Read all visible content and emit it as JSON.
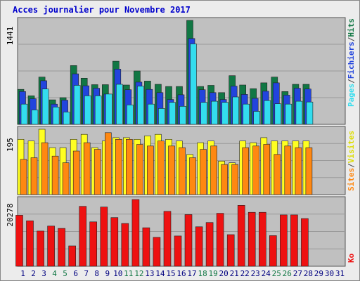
{
  "title": "Acces journalier pour Novembre 2017",
  "colors": {
    "title": "#0000cc",
    "panel_bg": "#c0c0c0",
    "grid": "#9a9a9a",
    "pages": "#33ddee",
    "fichiers": "#2244dd",
    "hits": "#117744",
    "sites": "#ffff22",
    "visites": "#ff8811",
    "ko": "#ee1111",
    "weekend_tick": "#117744",
    "weekday_tick": "#000080"
  },
  "chart_data": [
    {
      "type": "bar",
      "name": "pages-fichiers-hits",
      "y_max_label": "1441",
      "ylim": [
        0,
        1441
      ],
      "legend": [
        "Pages",
        "Fichiers",
        "Hits"
      ],
      "x": [
        "1",
        "2",
        "3",
        "4",
        "5",
        "6",
        "7",
        "8",
        "9",
        "10",
        "11",
        "12",
        "13",
        "14",
        "15",
        "16",
        "17",
        "18",
        "19",
        "20",
        "21",
        "22",
        "23",
        "24",
        "25",
        "26",
        "27",
        "28",
        "29",
        "30",
        "31"
      ],
      "series": [
        {
          "name": "Hits",
          "values": [
            485,
            395,
            655,
            340,
            370,
            815,
            640,
            550,
            550,
            875,
            545,
            740,
            600,
            555,
            525,
            525,
            1441,
            525,
            540,
            440,
            675,
            545,
            495,
            575,
            655,
            455,
            555,
            555,
            0,
            0,
            0
          ]
        },
        {
          "name": "Fichiers",
          "values": [
            455,
            355,
            605,
            280,
            335,
            700,
            535,
            500,
            420,
            765,
            480,
            585,
            485,
            440,
            345,
            410,
            1190,
            480,
            440,
            345,
            530,
            415,
            360,
            460,
            575,
            405,
            500,
            490,
            0,
            0,
            0
          ]
        },
        {
          "name": "Pages",
          "values": [
            280,
            200,
            490,
            240,
            170,
            540,
            395,
            395,
            420,
            555,
            270,
            530,
            280,
            220,
            305,
            250,
            1115,
            305,
            320,
            305,
            380,
            280,
            180,
            330,
            285,
            280,
            320,
            310,
            0,
            0,
            0
          ]
        }
      ]
    },
    {
      "type": "bar",
      "name": "sites-visites",
      "y_max_label": "195",
      "ylim": [
        0,
        195
      ],
      "legend": [
        "Sites",
        "Visites"
      ],
      "x": [
        "1",
        "2",
        "3",
        "4",
        "5",
        "6",
        "7",
        "8",
        "9",
        "10",
        "11",
        "12",
        "13",
        "14",
        "15",
        "16",
        "17",
        "18",
        "19",
        "20",
        "21",
        "22",
        "23",
        "24",
        "25",
        "26",
        "27",
        "28",
        "29",
        "30",
        "31"
      ],
      "series": [
        {
          "name": "Sites",
          "values": [
            165,
            160,
            195,
            140,
            140,
            165,
            180,
            140,
            160,
            170,
            170,
            165,
            175,
            180,
            165,
            160,
            120,
            155,
            160,
            100,
            95,
            160,
            155,
            170,
            160,
            160,
            160,
            160,
            0,
            0,
            0
          ]
        },
        {
          "name": "Visites",
          "values": [
            105,
            110,
            155,
            115,
            95,
            130,
            155,
            135,
            185,
            165,
            165,
            150,
            145,
            160,
            145,
            140,
            110,
            135,
            145,
            90,
            90,
            140,
            145,
            150,
            120,
            145,
            140,
            140,
            0,
            0,
            0
          ]
        }
      ]
    },
    {
      "type": "bar",
      "name": "ko",
      "y_max_label": "20278",
      "ylim": [
        0,
        20278
      ],
      "legend": [
        "Ko"
      ],
      "x": [
        "1",
        "2",
        "3",
        "4",
        "5",
        "6",
        "7",
        "8",
        "9",
        "10",
        "11",
        "12",
        "13",
        "14",
        "15",
        "16",
        "17",
        "18",
        "19",
        "20",
        "21",
        "22",
        "23",
        "24",
        "25",
        "26",
        "27",
        "28",
        "29",
        "30",
        "31"
      ],
      "series": [
        {
          "name": "Ko",
          "values": [
            15500,
            13800,
            10700,
            12200,
            11500,
            6200,
            18200,
            13500,
            18000,
            14800,
            13000,
            20278,
            11700,
            8800,
            16700,
            9200,
            15700,
            12000,
            13300,
            16100,
            9600,
            18500,
            16400,
            16400,
            9300,
            15600,
            15600,
            14500,
            0,
            0,
            0
          ]
        }
      ]
    }
  ],
  "x_axis": {
    "labels": [
      "1",
      "2",
      "3",
      "4",
      "5",
      "6",
      "7",
      "8",
      "9",
      "10",
      "11",
      "12",
      "13",
      "14",
      "15",
      "16",
      "17",
      "18",
      "19",
      "20",
      "21",
      "22",
      "23",
      "24",
      "25",
      "26",
      "27",
      "28",
      "29",
      "30",
      "31"
    ],
    "weekend": [
      false,
      false,
      false,
      true,
      true,
      false,
      false,
      false,
      false,
      false,
      true,
      true,
      false,
      false,
      false,
      false,
      false,
      true,
      true,
      false,
      false,
      false,
      false,
      false,
      true,
      true,
      false,
      false,
      false,
      false,
      false
    ]
  },
  "legend_text": {
    "pages": "Pages",
    "fichiers": "Fichiers",
    "hits": "Hits",
    "sites": "Sites",
    "visites": "Visites",
    "ko": "Ko",
    "separator": "/"
  }
}
